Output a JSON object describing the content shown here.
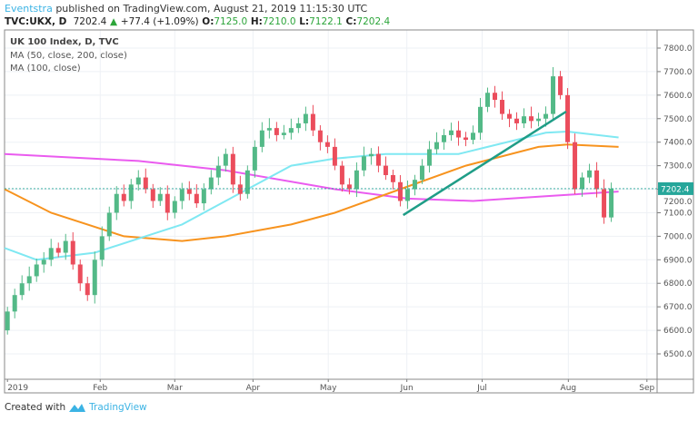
{
  "header": {
    "author": "Eventstra",
    "published": "published on TradingView.com, August 21, 2019 11:15:30 UTC",
    "symbol": "TVC:UKX, D",
    "last": "7202.4",
    "change": "+77.4 (+1.09%)",
    "o_label": "O:",
    "o": "7125.0",
    "h_label": "H:",
    "h": "7210.0",
    "l_label": "L:",
    "l": "7122.1",
    "c_label": "C:",
    "c": "7202.4"
  },
  "legend": [
    "UK 100 Index, D, TVC",
    "MA (50, close, 200, close)",
    "MA (100, close)"
  ],
  "footer": {
    "created_with": "Created with",
    "brand": "TradingView"
  },
  "colors": {
    "up": "#53b987",
    "down": "#eb4d5c",
    "ma50": "#7fe8f2",
    "ma100": "#f7931e",
    "ma200": "#ea5bef",
    "trend": "#1f9d87",
    "last_price": "#26a69a"
  },
  "chart_data": {
    "type": "candlestick",
    "title": "UK 100 Index, D, TVC",
    "ylim": [
      6450,
      7850
    ],
    "yticks": [
      6500,
      6600,
      6700,
      6800,
      6900,
      7000,
      7100,
      7200,
      7300,
      7400,
      7500,
      7600,
      7700,
      7800
    ],
    "ytick_labels": [
      "6500.0",
      "6600.0",
      "6700.0",
      "6800.0",
      "6900.0",
      "7000.0",
      "7100.0",
      "7200.0",
      "7300.0",
      "7400.0",
      "7500.0",
      "7600.0",
      "7700.0",
      "7800.0"
    ],
    "last_price_label": "7202.4",
    "last_price": 7202.4,
    "xlim": [
      -0.4,
      89.3
    ],
    "months": [
      {
        "label": "2019",
        "i": 0
      },
      {
        "label": "Feb",
        "i": 12.75
      },
      {
        "label": "Mar",
        "i": 23
      },
      {
        "label": "Apr",
        "i": 33.75
      },
      {
        "label": "May",
        "i": 44.1
      },
      {
        "label": "Jun",
        "i": 54.9
      },
      {
        "label": "Jul",
        "i": 65.25
      },
      {
        "label": "Aug",
        "i": 77.1
      },
      {
        "label": "Sep",
        "i": 87.9
      }
    ],
    "first_open": 6600,
    "closes": [
      6680,
      6750,
      6800,
      6830,
      6880,
      6900,
      6950,
      6930,
      6980,
      6880,
      6800,
      6750,
      6900,
      7000,
      7100,
      7180,
      7150,
      7220,
      7250,
      7200,
      7150,
      7180,
      7100,
      7150,
      7200,
      7180,
      7140,
      7200,
      7250,
      7300,
      7350,
      7220,
      7180,
      7280,
      7380,
      7450,
      7460,
      7430,
      7440,
      7460,
      7480,
      7520,
      7450,
      7400,
      7380,
      7300,
      7220,
      7200,
      7280,
      7340,
      7350,
      7300,
      7260,
      7230,
      7150,
      7200,
      7240,
      7300,
      7370,
      7400,
      7430,
      7450,
      7420,
      7410,
      7440,
      7550,
      7610,
      7580,
      7520,
      7500,
      7480,
      7510,
      7490,
      7500,
      7520,
      7680,
      7600,
      7400,
      7200,
      7250,
      7280,
      7200,
      7080,
      7202.4
    ],
    "series": [
      {
        "name": "MA 200",
        "points": [
          [
            -0.4,
            7350
          ],
          [
            18,
            7320
          ],
          [
            30,
            7280
          ],
          [
            45,
            7200
          ],
          [
            55,
            7160
          ],
          [
            64,
            7150
          ],
          [
            74,
            7170
          ],
          [
            84,
            7190
          ]
        ]
      },
      {
        "name": "MA 100",
        "points": [
          [
            -0.4,
            7200
          ],
          [
            6,
            7100
          ],
          [
            16,
            7000
          ],
          [
            24,
            6980
          ],
          [
            30,
            7000
          ],
          [
            39,
            7050
          ],
          [
            45,
            7100
          ],
          [
            54,
            7200
          ],
          [
            63,
            7300
          ],
          [
            73,
            7380
          ],
          [
            77,
            7390
          ],
          [
            84,
            7380
          ]
        ]
      },
      {
        "name": "MA 50",
        "points": [
          [
            -0.4,
            6950
          ],
          [
            4,
            6900
          ],
          [
            12,
            6930
          ],
          [
            24,
            7050
          ],
          [
            33,
            7200
          ],
          [
            39,
            7300
          ],
          [
            45,
            7330
          ],
          [
            52,
            7350
          ],
          [
            62,
            7350
          ],
          [
            66,
            7380
          ],
          [
            74,
            7440
          ],
          [
            77,
            7445
          ],
          [
            84,
            7420
          ]
        ]
      }
    ],
    "trendline": [
      [
        54.4,
        7090
      ],
      [
        76.8,
        7530
      ]
    ]
  }
}
